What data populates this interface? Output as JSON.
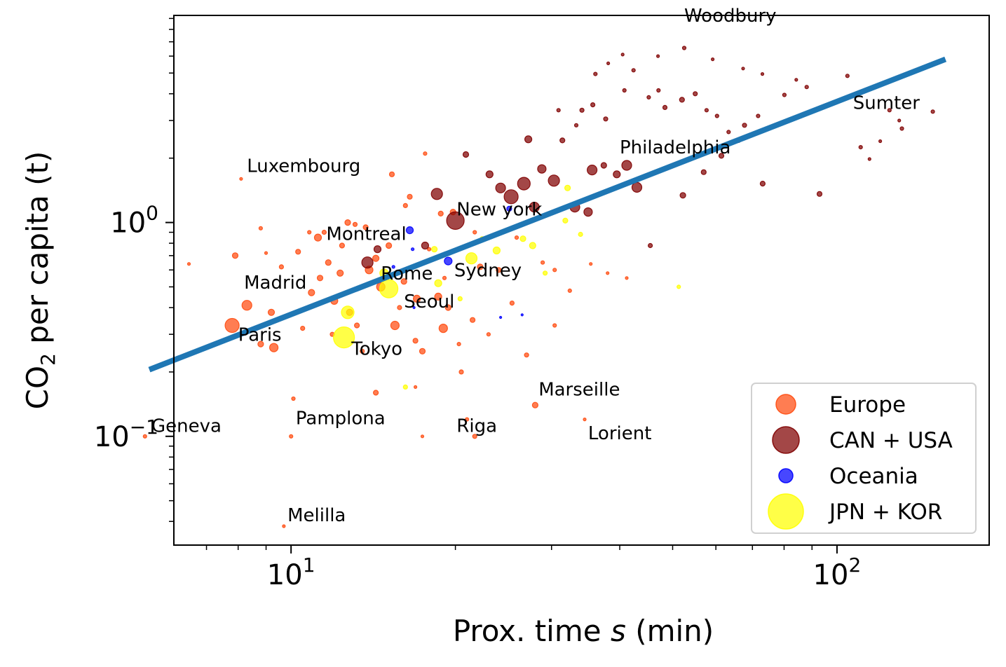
{
  "chart_data": {
    "type": "scatter",
    "xlabel_main": "Prox. time ",
    "xlabel_var": "s",
    "xlabel_unit": " (min)",
    "ylabel_pre": "CO",
    "ylabel_sub": "2",
    "ylabel_post": " per capita (t)",
    "x_scale": "log",
    "y_scale": "log",
    "xlim": [
      6.1,
      190
    ],
    "ylim": [
      0.031,
      9.3
    ],
    "x_ticks": [
      {
        "value": 10,
        "base": "10",
        "exp": "1"
      },
      {
        "value": 100,
        "base": "10",
        "exp": "2"
      }
    ],
    "y_ticks": [
      {
        "value": 0.1,
        "base": "10",
        "exp": "−1"
      },
      {
        "value": 1,
        "base": "10",
        "exp": "0"
      }
    ],
    "grid": false,
    "legend_position": "lower-right",
    "series": [
      {
        "name": "Europe",
        "color": "#ff4b0f",
        "points": [
          [
            5.4,
            0.1,
            5
          ],
          [
            7.9,
            0.7,
            8
          ],
          [
            8.3,
            0.41,
            14
          ],
          [
            7.8,
            0.33,
            20
          ],
          [
            8.8,
            0.27,
            8
          ],
          [
            9.3,
            0.26,
            12
          ],
          [
            9.6,
            0.62,
            6
          ],
          [
            10.3,
            0.73,
            7
          ],
          [
            10.9,
            0.47,
            9
          ],
          [
            11.2,
            0.85,
            10
          ],
          [
            11.3,
            0.55,
            8
          ],
          [
            11.7,
            0.65,
            8
          ],
          [
            12.0,
            0.43,
            10
          ],
          [
            12.4,
            0.78,
            7
          ],
          [
            12.8,
            0.38,
            9
          ],
          [
            13.2,
            0.33,
            7
          ],
          [
            13.9,
            0.6,
            11
          ],
          [
            14.3,
            0.68,
            9
          ],
          [
            14.6,
            0.5,
            12
          ],
          [
            15.1,
            0.78,
            8
          ],
          [
            15.5,
            0.33,
            12
          ],
          [
            16.1,
            0.53,
            8
          ],
          [
            16.5,
            1.32,
            7
          ],
          [
            17.0,
            0.44,
            10
          ],
          [
            17.4,
            0.25,
            8
          ],
          [
            18.6,
            0.45,
            10
          ],
          [
            19.0,
            0.32,
            12
          ],
          [
            19.4,
            0.4,
            8
          ],
          [
            19.8,
            1.12,
            8
          ],
          [
            20.5,
            0.2,
            6
          ],
          [
            21.0,
            0.12,
            5
          ],
          [
            21.5,
            0.35,
            7
          ],
          [
            22.2,
            0.62,
            8
          ],
          [
            24.0,
            0.6,
            7
          ],
          [
            25.4,
            0.42,
            6
          ],
          [
            27.0,
            0.24,
            6
          ],
          [
            28.0,
            0.14,
            8
          ],
          [
            30.4,
            0.33,
            5
          ],
          [
            34.5,
            0.12,
            4
          ],
          [
            11.5,
            0.9,
            6
          ],
          [
            12.3,
            0.58,
            9
          ],
          [
            13.7,
            0.95,
            7
          ],
          [
            16.9,
            0.28,
            7
          ],
          [
            18.8,
            1.1,
            7
          ],
          [
            15.3,
            1.68,
            7
          ],
          [
            17.6,
            2.1,
            5
          ],
          [
            14.3,
            0.16,
            7
          ],
          [
            13.5,
            0.25,
            6
          ],
          [
            10.1,
            0.15,
            5
          ],
          [
            9.2,
            0.38,
            9
          ],
          [
            10.5,
            0.32,
            6
          ],
          [
            12.7,
            1.0,
            8
          ],
          [
            8.8,
            0.94,
            5
          ],
          [
            6.5,
            0.64,
            4
          ],
          [
            9.0,
            0.72,
            4
          ],
          [
            10.8,
            0.9,
            5
          ],
          [
            11.9,
            0.3,
            6
          ],
          [
            13.1,
            0.98,
            6
          ],
          [
            15.8,
            0.4,
            6
          ],
          [
            16.2,
            1.2,
            6
          ],
          [
            17.9,
            0.75,
            5
          ],
          [
            19.1,
            0.55,
            5
          ],
          [
            20.3,
            0.27,
            5
          ],
          [
            21.7,
            0.9,
            5
          ],
          [
            23.0,
            0.3,
            5
          ],
          [
            25.9,
            0.85,
            5
          ],
          [
            28.9,
            0.65,
            5
          ],
          [
            30.4,
            0.6,
            5
          ],
          [
            32.4,
            0.48,
            5
          ],
          [
            35.4,
            0.64,
            4
          ],
          [
            38.0,
            0.58,
            4
          ],
          [
            41.2,
            0.55,
            4
          ],
          [
            8.1,
            1.6,
            4
          ],
          [
            9.7,
            0.038,
            4
          ],
          [
            10.0,
            0.1,
            5
          ],
          [
            16.9,
            0.17,
            4
          ],
          [
            17.4,
            0.1,
            4
          ],
          [
            21.7,
            0.1,
            6
          ]
        ]
      },
      {
        "name": "CAN + USA",
        "color": "#800000",
        "points": [
          [
            13.8,
            0.65,
            16
          ],
          [
            14.4,
            0.75,
            10
          ],
          [
            17.6,
            0.78,
            10
          ],
          [
            18.5,
            1.36,
            16
          ],
          [
            20.0,
            1.02,
            25
          ],
          [
            20.9,
            2.08,
            8
          ],
          [
            23.1,
            1.68,
            10
          ],
          [
            24.2,
            1.45,
            14
          ],
          [
            25.3,
            1.32,
            20
          ],
          [
            26.7,
            1.52,
            18
          ],
          [
            27.2,
            2.45,
            10
          ],
          [
            27.9,
            1.18,
            14
          ],
          [
            28.8,
            1.78,
            12
          ],
          [
            30.3,
            1.57,
            16
          ],
          [
            31.4,
            2.42,
            7
          ],
          [
            33.1,
            1.18,
            14
          ],
          [
            35.0,
            1.12,
            12
          ],
          [
            35.6,
            1.76,
            14
          ],
          [
            37.4,
            1.85,
            8
          ],
          [
            39.5,
            1.68,
            10
          ],
          [
            41.2,
            1.85,
            14
          ],
          [
            43.0,
            1.46,
            14
          ],
          [
            45.5,
            0.78,
            6
          ],
          [
            52.2,
            1.34,
            8
          ],
          [
            57.0,
            1.72,
            7
          ],
          [
            61.4,
            2.05,
            7
          ],
          [
            66.0,
            2.42,
            6
          ],
          [
            73.1,
            1.52,
            7
          ],
          [
            92.9,
            1.36,
            7
          ],
          [
            30.9,
            3.35,
            5
          ],
          [
            33.3,
            2.85,
            5
          ],
          [
            34.1,
            3.35,
            6
          ],
          [
            35.7,
            3.55,
            6
          ],
          [
            37.7,
            3.05,
            6
          ],
          [
            40.8,
            4.15,
            5
          ],
          [
            42.4,
            5.15,
            5
          ],
          [
            45.2,
            3.85,
            5
          ],
          [
            47.1,
            4.15,
            5
          ],
          [
            48.4,
            3.45,
            6
          ],
          [
            52.0,
            3.75,
            7
          ],
          [
            55.0,
            4.0,
            6
          ],
          [
            57.7,
            3.35,
            5
          ],
          [
            60.3,
            3.15,
            5
          ],
          [
            63.3,
            2.65,
            5
          ],
          [
            67.7,
            2.85,
            6
          ],
          [
            71.7,
            3.15,
            5
          ],
          [
            80.1,
            3.95,
            5
          ],
          [
            88.0,
            4.3,
            5
          ],
          [
            96.6,
            3.55,
            6
          ],
          [
            104.5,
            4.85,
            5
          ],
          [
            110.5,
            2.25,
            5
          ],
          [
            124.8,
            3.35,
            5
          ],
          [
            131.5,
            2.75,
            5
          ],
          [
            149.8,
            3.3,
            5
          ],
          [
            40.5,
            6.1,
            4
          ],
          [
            47.0,
            6.0,
            4
          ],
          [
            52.5,
            6.55,
            5
          ],
          [
            36.1,
            4.95,
            5
          ],
          [
            38.1,
            5.55,
            4
          ],
          [
            59.2,
            5.8,
            4
          ],
          [
            67.3,
            5.25,
            4
          ],
          [
            73.0,
            4.95,
            4
          ],
          [
            84.2,
            4.65,
            4
          ],
          [
            120.0,
            2.4,
            4
          ],
          [
            114.7,
            1.98,
            4
          ],
          [
            130.0,
            3.0,
            4
          ]
        ]
      },
      {
        "name": "Oceania",
        "color": "#0000ff",
        "points": [
          [
            16.5,
            0.92,
            10
          ],
          [
            19.4,
            0.66,
            11
          ],
          [
            16.7,
            0.75,
            4
          ],
          [
            25.1,
            1.16,
            7
          ],
          [
            24.2,
            0.36,
            3
          ],
          [
            26.5,
            0.37,
            3
          ],
          [
            15.4,
            0.62,
            4
          ],
          [
            16.8,
            0.4,
            3
          ]
        ]
      },
      {
        "name": "JPN + KOR",
        "color": "#ffff00",
        "points": [
          [
            12.5,
            0.29,
            30
          ],
          [
            12.7,
            0.38,
            18
          ],
          [
            15.1,
            0.49,
            26
          ],
          [
            14.8,
            0.58,
            12
          ],
          [
            18.3,
            0.75,
            8
          ],
          [
            18.6,
            0.52,
            10
          ],
          [
            21.4,
            0.68,
            16
          ],
          [
            23.8,
            0.74,
            10
          ],
          [
            26.6,
            0.84,
            8
          ],
          [
            27.7,
            0.78,
            9
          ],
          [
            29.2,
            0.58,
            6
          ],
          [
            31.8,
            1.02,
            7
          ],
          [
            32.1,
            1.45,
            8
          ],
          [
            33.9,
            0.88,
            6
          ],
          [
            51.3,
            0.5,
            5
          ],
          [
            16.2,
            0.17,
            6
          ],
          [
            20.4,
            0.44,
            6
          ],
          [
            22.4,
            0.84,
            6
          ]
        ]
      }
    ],
    "annotations": [
      {
        "text": "Woodbury",
        "x": 52.5,
        "y": 8.7
      },
      {
        "text": "Sumter",
        "x": 107,
        "y": 3.4
      },
      {
        "text": "Philadelphia",
        "x": 40,
        "y": 2.1
      },
      {
        "text": "Luxembourg",
        "x": 8.3,
        "y": 1.72
      },
      {
        "text": "New york",
        "x": 20.1,
        "y": 1.08
      },
      {
        "text": "Montreal",
        "x": 11.6,
        "y": 0.83
      },
      {
        "text": "Rome",
        "x": 14.6,
        "y": 0.54
      },
      {
        "text": "Sydney",
        "x": 19.9,
        "y": 0.56
      },
      {
        "text": "Madrid",
        "x": 8.2,
        "y": 0.49
      },
      {
        "text": "Seoul",
        "x": 16.1,
        "y": 0.4
      },
      {
        "text": "Paris",
        "x": 8.0,
        "y": 0.28
      },
      {
        "text": "Tokyo",
        "x": 12.9,
        "y": 0.24
      },
      {
        "text": "Marseille",
        "x": 28.4,
        "y": 0.155
      },
      {
        "text": "Pamplona",
        "x": 10.2,
        "y": 0.114
      },
      {
        "text": "Geneva",
        "x": 5.55,
        "y": 0.105
      },
      {
        "text": "Riga",
        "x": 20.1,
        "y": 0.105
      },
      {
        "text": "Lorient",
        "x": 35,
        "y": 0.097
      },
      {
        "text": "Melilla",
        "x": 9.85,
        "y": 0.04
      }
    ],
    "fit_line": {
      "color": "#1f77b4",
      "x": [
        5.5,
        158
      ],
      "y": [
        0.205,
        5.8
      ]
    }
  }
}
